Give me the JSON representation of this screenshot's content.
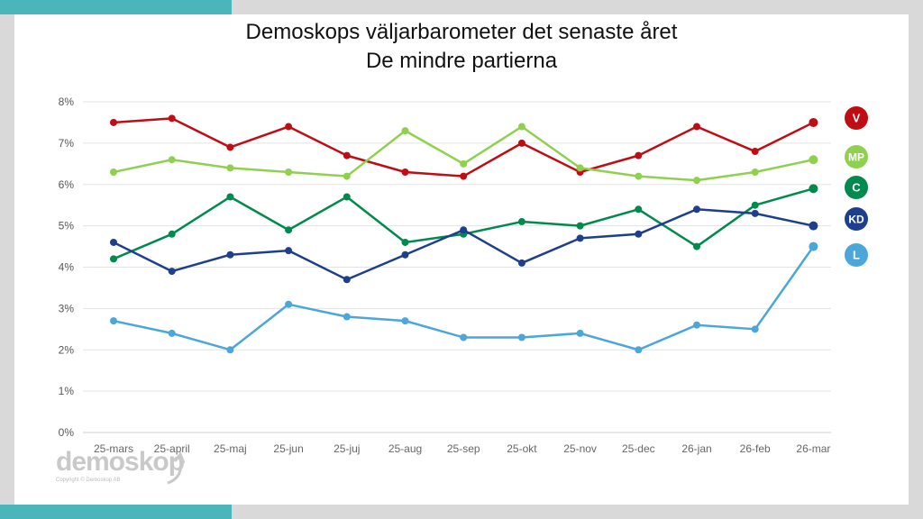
{
  "logo": {
    "text": "demoskop",
    "copyright": "Copyright © Demoskop AB"
  },
  "chart_data": {
    "type": "line",
    "title": "Demoskops väljarbarometer det senaste året",
    "subtitle": "De mindre partierna",
    "categories": [
      "25-mars",
      "25-april",
      "25-maj",
      "25-jun",
      "25-juj",
      "25-aug",
      "25-sep",
      "25-okt",
      "25-nov",
      "25-dec",
      "26-jan",
      "26-feb",
      "26-mar"
    ],
    "ylim": [
      0,
      8
    ],
    "yticks": [
      "0%",
      "1%",
      "2%",
      "3%",
      "4%",
      "5%",
      "6%",
      "7%",
      "8%"
    ],
    "grid": true,
    "legend": "right",
    "series": [
      {
        "name": "V",
        "color": "#c00d14",
        "values": [
          7.5,
          7.6,
          6.9,
          7.4,
          6.7,
          6.3,
          6.2,
          7.0,
          6.3,
          6.7,
          7.4,
          6.8,
          7.5
        ]
      },
      {
        "name": "MP",
        "color": "#8fd14f",
        "values": [
          6.3,
          6.6,
          6.4,
          6.3,
          6.2,
          7.3,
          6.5,
          7.4,
          6.4,
          6.2,
          6.1,
          6.3,
          6.6
        ]
      },
      {
        "name": "C",
        "color": "#008a4e",
        "values": [
          4.2,
          4.8,
          5.7,
          4.9,
          5.7,
          4.6,
          4.8,
          5.1,
          5.0,
          5.4,
          4.5,
          5.5,
          5.9
        ]
      },
      {
        "name": "KD",
        "color": "#1e3f8c",
        "values": [
          4.6,
          3.9,
          4.3,
          4.4,
          3.7,
          4.3,
          4.9,
          4.1,
          4.7,
          4.8,
          5.4,
          5.3,
          5.0
        ]
      },
      {
        "name": "L",
        "color": "#4ba6d9",
        "values": [
          2.7,
          2.4,
          2.0,
          3.1,
          2.8,
          2.7,
          2.3,
          2.3,
          2.4,
          2.0,
          2.6,
          2.5,
          4.5
        ]
      }
    ]
  }
}
